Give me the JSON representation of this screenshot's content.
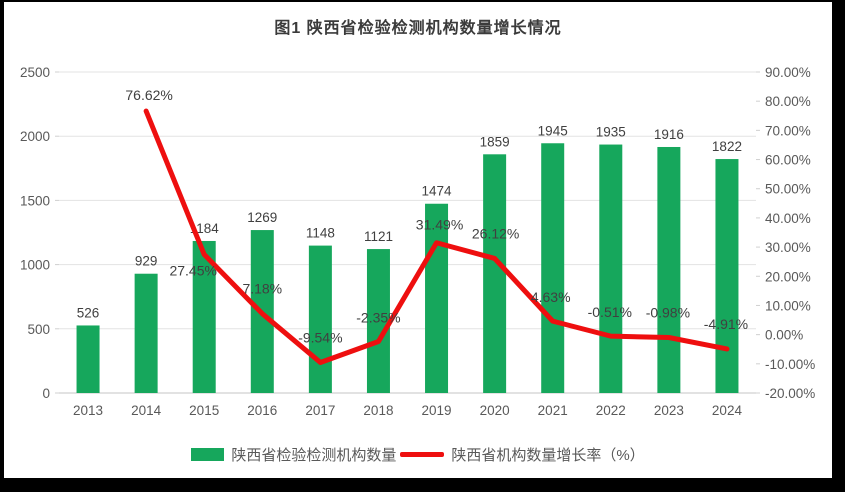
{
  "title": "图1 陕西省检验检测机构数量增长情况",
  "colors": {
    "background": "#000000",
    "panel": "#ffffff",
    "bar": "#16a75c",
    "line": "#ee0f0f",
    "grid": "#e3e3e3",
    "axis_line": "#d0d0d0",
    "axis_text": "#595959",
    "data_label": "#404040",
    "title_text": "#3b3b3b"
  },
  "chart_data": {
    "type": "bar",
    "title": "图1 陕西省检验检测机构数量增长情况",
    "xlabel": "",
    "ylabel_left": "",
    "ylabel_right": "",
    "categories": [
      "2013",
      "2014",
      "2015",
      "2016",
      "2017",
      "2018",
      "2019",
      "2020",
      "2021",
      "2022",
      "2023",
      "2024"
    ],
    "series": [
      {
        "name": "陕西省检验检测机构数量",
        "type": "bar",
        "axis": "left",
        "values": [
          526,
          929,
          1184,
          1269,
          1148,
          1121,
          1474,
          1859,
          1945,
          1935,
          1916,
          1822
        ],
        "labels": [
          "526",
          "929",
          "1184",
          "1269",
          "1148",
          "1121",
          "1474",
          "1859",
          "1945",
          "1935",
          "1916",
          "1822"
        ]
      },
      {
        "name": "陕西省机构数量增长率（%）",
        "type": "line",
        "axis": "right",
        "values": [
          null,
          76.62,
          27.45,
          7.18,
          -9.54,
          -2.35,
          31.49,
          26.12,
          4.63,
          -0.51,
          -0.98,
          -4.91
        ],
        "labels": [
          null,
          "76.62%",
          "27.45%",
          "7.18%",
          "-9.54%",
          "-2.35%",
          "31.49%",
          "26.12%",
          "4.63%",
          "-0.51%",
          "-0.98%",
          "-4.91%"
        ],
        "label_offsets": [
          null,
          [
            3,
            -16
          ],
          [
            -11,
            16
          ],
          [
            0,
            -25
          ],
          [
            0,
            -25
          ],
          [
            0,
            -24
          ],
          [
            3,
            -18
          ],
          [
            1,
            -25
          ],
          [
            -2,
            -24
          ],
          [
            -1,
            -24
          ],
          [
            -1,
            -25
          ],
          [
            -1,
            -25
          ]
        ]
      }
    ],
    "left_axis": {
      "min": 0,
      "max": 2500,
      "step": 500,
      "ticks": [
        "0",
        "500",
        "1000",
        "1500",
        "2000",
        "2500"
      ]
    },
    "right_axis": {
      "min": -20,
      "max": 90,
      "step": 10,
      "ticks": [
        "-20.00%",
        "-10.00%",
        "0.00%",
        "10.00%",
        "20.00%",
        "30.00%",
        "40.00%",
        "50.00%",
        "60.00%",
        "70.00%",
        "80.00%",
        "90.00%"
      ]
    },
    "grid": true,
    "legend_position": "bottom"
  },
  "legend": {
    "bar_label": "陕西省检验检测机构数量",
    "line_label": "陕西省机构数量增长率（%）"
  }
}
